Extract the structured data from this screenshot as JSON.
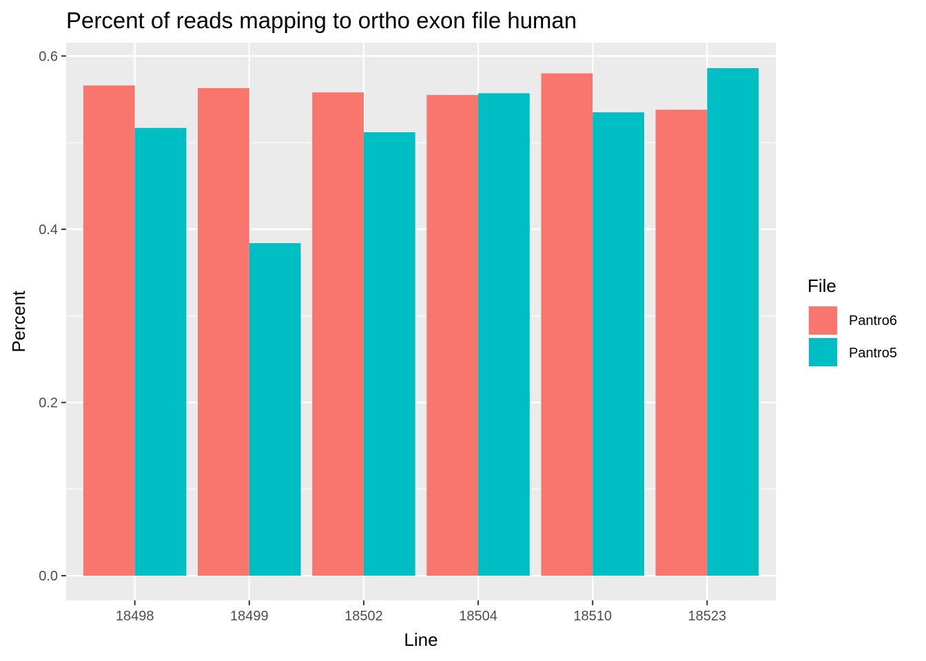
{
  "chart_data": {
    "type": "bar",
    "title": "Percent of reads mapping to ortho exon file human",
    "xlabel": "Line",
    "ylabel": "Percent",
    "categories": [
      "18498",
      "18499",
      "18502",
      "18504",
      "18510",
      "18523"
    ],
    "series": [
      {
        "name": "Pantro6",
        "color": "#F8766D",
        "values": [
          0.566,
          0.563,
          0.558,
          0.555,
          0.58,
          0.538
        ]
      },
      {
        "name": "Pantro5",
        "color": "#00BFC4",
        "values": [
          0.517,
          0.384,
          0.512,
          0.557,
          0.535,
          0.586
        ]
      }
    ],
    "ylim": [
      -0.0285,
      0.6154
    ],
    "y_major_ticks": [
      0.0,
      0.2,
      0.4,
      0.6
    ],
    "y_tick_labels": [
      "0.0",
      "0.2",
      "0.4",
      "0.6"
    ],
    "y_minor_ticks": [
      0.1,
      0.3,
      0.5
    ],
    "grid": true,
    "panel_background": "#EBEBEB",
    "legend": {
      "title": "File",
      "position": "right"
    }
  }
}
